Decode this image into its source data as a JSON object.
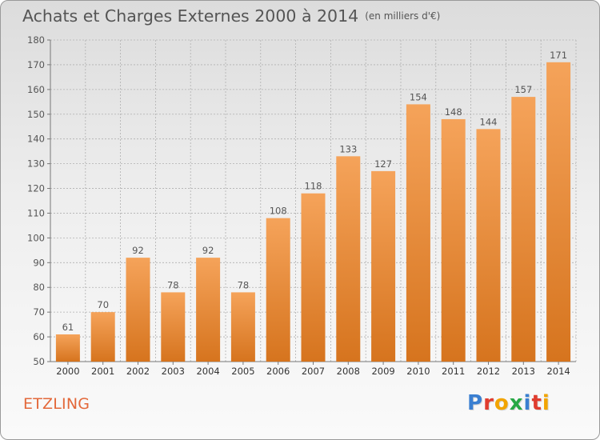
{
  "header": {
    "title": "Achats et Charges Externes 2000 à 2014",
    "unit": "(en milliers d'€)"
  },
  "footer": {
    "commune": "ETZLING",
    "logo_text": "Proxiti",
    "logo_colors": [
      "#3a7fd1",
      "#e03c2e",
      "#f2a400",
      "#27a845",
      "#3a7fd1",
      "#e03c2e",
      "#f2a400"
    ]
  },
  "colors": {
    "bar_top": "#f5a35a",
    "bar_bottom": "#d6741e",
    "grid": "#b0b0b0",
    "axis_text": "#555555",
    "commune": "#e3683a"
  },
  "chart_data": {
    "type": "bar",
    "categories": [
      "2000",
      "2001",
      "2002",
      "2003",
      "2004",
      "2005",
      "2006",
      "2007",
      "2008",
      "2009",
      "2010",
      "2011",
      "2012",
      "2013",
      "2014"
    ],
    "values": [
      61,
      70,
      92,
      78,
      92,
      78,
      108,
      118,
      133,
      127,
      154,
      148,
      144,
      157,
      171
    ],
    "data_labels": [
      "61",
      "70",
      "92",
      "78",
      "92",
      "78",
      "108",
      "118",
      "133",
      "127",
      "154",
      "148",
      "144",
      "157",
      "171"
    ],
    "title": "Achats et Charges Externes 2000 à 2014",
    "ylim": [
      50,
      180
    ],
    "yticks": [
      50,
      60,
      70,
      80,
      90,
      100,
      110,
      120,
      130,
      140,
      150,
      160,
      170,
      180
    ],
    "grid": true,
    "legend": "none"
  }
}
